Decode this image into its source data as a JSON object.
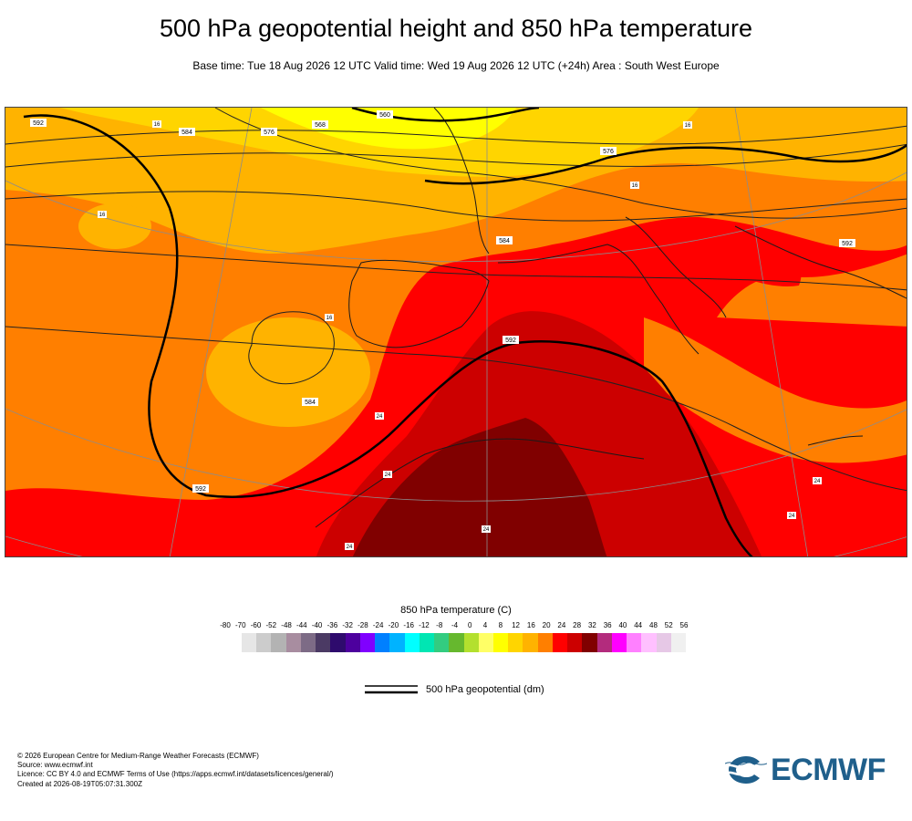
{
  "header": {
    "title": "500 hPa geopotential height and 850 hPa temperature",
    "subtitle": "Base time: Tue 18 Aug 2026 12 UTC Valid time: Wed 19 Aug 2026 12 UTC (+24h) Area : South West Europe"
  },
  "map": {
    "contour_labels": [
      "560",
      "568",
      "576",
      "584",
      "592",
      "592",
      "584",
      "576",
      "584",
      "592",
      "592"
    ],
    "temp_labels": [
      "16",
      "16",
      "16",
      "16",
      "24",
      "24",
      "16",
      "24",
      "24",
      "24",
      "24"
    ]
  },
  "colorbar": {
    "title": "850 hPa temperature (C)",
    "ticks": [
      "-80",
      "-70",
      "-60",
      "-52",
      "-48",
      "-44",
      "-40",
      "-36",
      "-32",
      "-28",
      "-24",
      "-20",
      "-16",
      "-12",
      "-8",
      "-4",
      "0",
      "4",
      "8",
      "12",
      "16",
      "20",
      "24",
      "28",
      "32",
      "36",
      "40",
      "44",
      "48",
      "52",
      "56"
    ],
    "colors": [
      "#e6e6e6",
      "#cccccc",
      "#b3b3b3",
      "#a88da0",
      "#7d6b86",
      "#4b3a64",
      "#2e0b6d",
      "#4d009e",
      "#8000ff",
      "#0080ff",
      "#00b3ff",
      "#00ffff",
      "#00e6b3",
      "#33cc80",
      "#66b82e",
      "#b3e02e",
      "#ffff66",
      "#ffff00",
      "#ffd500",
      "#ffb300",
      "#ff7f00",
      "#ff0000",
      "#cc0000",
      "#800000",
      "#b32b7d",
      "#ff00ff",
      "#ff80ff",
      "#ffc0ff",
      "#e6c8e6",
      "#f0f0f0"
    ]
  },
  "legend": {
    "label": "500 hPa geopotential (dm)"
  },
  "footer": {
    "copyright": "© 2026 European Centre for Medium-Range Weather Forecasts (ECMWF)",
    "source": "Source: www.ecmwf.int",
    "licence": "Licence: CC BY 4.0 and ECMWF Terms of Use (https://apps.ecmwf.int/datasets/licences/general/)",
    "created": "Created at 2026-08-19T05:07:31.300Z"
  },
  "logo": {
    "text": "ECMWF",
    "color": "#1f5f8b"
  }
}
